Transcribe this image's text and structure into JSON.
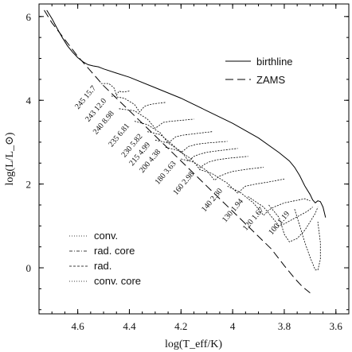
{
  "chart_data": {
    "type": "line",
    "title": "",
    "xlabel": "log(T_eff/K)",
    "ylabel": "log(L/L_⊙)",
    "xlim": [
      4.75,
      3.55
    ],
    "ylim": [
      -1.1,
      6.3
    ],
    "x_ticks": [
      4.6,
      4.4,
      4.2,
      4.0,
      3.8,
      3.6
    ],
    "x_tick_labels": [
      "4.6",
      "4.4",
      "4.2",
      "4",
      "3.8",
      "3.6"
    ],
    "y_ticks": [
      0,
      2,
      4,
      6
    ],
    "y_tick_labels": [
      "0",
      "2",
      "4",
      "6"
    ],
    "grid": false,
    "legend_top": [
      {
        "label": "birthline",
        "style": "solid"
      },
      {
        "label": "ZAMS",
        "style": "long-dash"
      }
    ],
    "legend_bottom": [
      {
        "label": "conv.",
        "style": "dotted"
      },
      {
        "label": "rad. core",
        "style": "dash-dot"
      },
      {
        "label": "rad.",
        "style": "short-dash"
      },
      {
        "label": "conv. core",
        "style": "dotted"
      }
    ],
    "series": [
      {
        "name": "birthline",
        "style": "solid",
        "x": [
          4.72,
          4.7,
          4.68,
          4.66,
          4.64,
          4.62,
          4.6,
          4.58,
          4.56,
          4.54,
          4.52,
          4.5,
          4.45,
          4.4,
          4.3,
          4.2,
          4.1,
          4.0,
          3.9,
          3.82,
          3.78,
          3.76,
          3.74,
          3.72,
          3.7,
          3.69,
          3.68,
          3.67,
          3.66,
          3.65,
          3.64
        ],
        "y": [
          6.15,
          5.95,
          5.72,
          5.5,
          5.3,
          5.15,
          5.02,
          4.92,
          4.85,
          4.82,
          4.8,
          4.75,
          4.65,
          4.55,
          4.3,
          4.05,
          3.75,
          3.45,
          3.1,
          2.75,
          2.55,
          2.4,
          2.2,
          1.95,
          1.75,
          1.62,
          1.55,
          1.6,
          1.58,
          1.45,
          1.2
        ]
      },
      {
        "name": "ZAMS",
        "style": "long-dash",
        "x": [
          4.73,
          4.7,
          4.65,
          4.6,
          4.55,
          4.5,
          4.4,
          4.3,
          4.2,
          4.1,
          4.0,
          3.9,
          3.85,
          3.8,
          3.76,
          3.73,
          3.7
        ],
        "y": [
          6.15,
          5.85,
          5.45,
          5.05,
          4.7,
          4.35,
          3.75,
          3.15,
          2.55,
          1.95,
          1.35,
          0.75,
          0.45,
          0.05,
          -0.25,
          -0.45,
          -0.6
        ]
      }
    ],
    "tracks": [
      {
        "label": "245 15.7",
        "x": [
          4.51,
          4.48,
          4.46,
          4.45,
          4.44,
          4.43,
          4.42,
          4.41,
          4.4
        ],
        "y": [
          4.4,
          4.4,
          4.3,
          4.12,
          4.22,
          4.2,
          4.2,
          4.21,
          4.22
        ]
      },
      {
        "label": "243 12.0",
        "x": [
          4.47,
          4.42,
          4.38,
          4.36,
          4.35,
          4.34,
          4.32,
          4.3,
          4.26
        ],
        "y": [
          4.1,
          4.05,
          3.9,
          3.72,
          3.8,
          3.86,
          3.9,
          3.92,
          3.95
        ]
      },
      {
        "label": "240 8.98",
        "x": [
          4.44,
          4.38,
          4.33,
          4.3,
          4.28,
          4.27,
          4.24,
          4.2,
          4.15
        ],
        "y": [
          3.8,
          3.75,
          3.55,
          3.33,
          3.42,
          3.47,
          3.5,
          3.52,
          3.55
        ]
      },
      {
        "label": "235 6.81",
        "x": [
          4.38,
          4.33,
          4.28,
          4.25,
          4.23,
          4.22,
          4.19,
          4.15,
          4.08
        ],
        "y": [
          3.5,
          3.42,
          3.22,
          2.98,
          3.08,
          3.13,
          3.17,
          3.2,
          3.25
        ]
      },
      {
        "label": "230 5.82",
        "x": [
          4.33,
          4.28,
          4.24,
          4.2,
          4.18,
          4.17,
          4.14,
          4.1,
          4.02
        ],
        "y": [
          3.25,
          3.18,
          2.98,
          2.75,
          2.85,
          2.9,
          2.95,
          2.98,
          3.02
        ]
      },
      {
        "label": "215 4.99",
        "x": [
          4.3,
          4.25,
          4.2,
          4.17,
          4.15,
          4.13,
          4.1,
          4.05,
          3.98
        ],
        "y": [
          3.05,
          2.98,
          2.78,
          2.55,
          2.66,
          2.71,
          2.76,
          2.8,
          2.85
        ]
      },
      {
        "label": "200 4.38",
        "x": [
          4.26,
          4.21,
          4.16,
          4.13,
          4.11,
          4.09,
          4.06,
          4.01,
          3.94
        ],
        "y": [
          2.88,
          2.8,
          2.6,
          2.37,
          2.47,
          2.53,
          2.58,
          2.62,
          2.66
        ]
      },
      {
        "label": "180 3.63",
        "x": [
          4.2,
          4.15,
          4.1,
          4.07,
          4.05,
          4.03,
          4.0,
          3.95,
          3.88
        ],
        "y": [
          2.6,
          2.52,
          2.32,
          2.09,
          2.19,
          2.24,
          2.3,
          2.35,
          2.4
        ]
      },
      {
        "label": "160 2.98",
        "x": [
          4.13,
          4.08,
          4.02,
          3.98,
          3.96,
          3.95,
          3.91,
          3.86,
          3.8
        ],
        "y": [
          2.35,
          2.25,
          2.02,
          1.78,
          1.9,
          1.95,
          2.0,
          2.05,
          2.12
        ]
      },
      {
        "label": "140 2.30",
        "x": [
          4.02,
          3.97,
          3.92,
          3.88,
          3.86,
          3.84,
          3.8,
          3.76,
          3.72,
          3.7
        ],
        "y": [
          1.95,
          1.8,
          1.55,
          1.25,
          1.38,
          1.45,
          1.55,
          1.6,
          1.65,
          1.6
        ]
      },
      {
        "label": "130 1.94",
        "x": [
          3.94,
          3.88,
          3.84,
          3.82,
          3.8,
          3.77,
          3.74,
          3.71,
          3.69
        ],
        "y": [
          1.7,
          1.45,
          1.15,
          1.0,
          1.05,
          1.15,
          1.25,
          1.35,
          1.45
        ]
      },
      {
        "label": "120 1.67",
        "x": [
          3.86,
          3.82,
          3.8,
          3.78,
          3.75,
          3.72,
          3.7,
          3.68,
          3.67
        ],
        "y": [
          1.5,
          1.2,
          0.8,
          0.62,
          0.7,
          0.9,
          1.1,
          1.3,
          1.45
        ]
      },
      {
        "label": "100 1.19",
        "x": [
          3.76,
          3.74,
          3.72,
          3.7,
          3.68,
          3.67,
          3.66,
          3.66,
          3.67
        ],
        "y": [
          1.4,
          1.0,
          0.6,
          0.25,
          -0.05,
          -0.05,
          0.2,
          0.6,
          1.1
        ]
      }
    ]
  }
}
